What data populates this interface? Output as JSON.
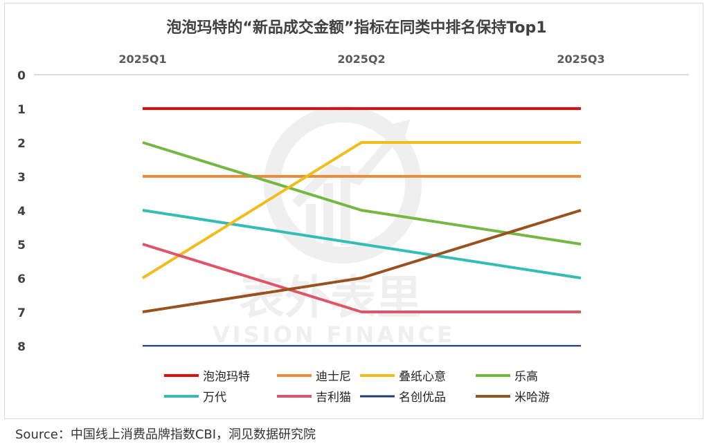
{
  "chart_data": {
    "type": "line",
    "title": "泡泡玛特的“新品成交金额”指标在同类中排名保持Top1",
    "x": [
      "2025Q1",
      "2025Q2",
      "2025Q3"
    ],
    "y_ticks": [
      "0",
      "1",
      "2",
      "3",
      "4",
      "5",
      "6",
      "7",
      "8"
    ],
    "ylim": [
      0,
      8
    ],
    "y_inverted": true,
    "grid": false,
    "legend_position": "bottom",
    "series": [
      {
        "name": "泡泡玛特",
        "values": [
          1,
          1,
          1
        ],
        "color": "#e30b0b"
      },
      {
        "name": "迪士尼",
        "values": [
          3,
          3,
          3
        ],
        "color": "#ee8a3c"
      },
      {
        "name": "叠纸心意",
        "values": [
          6,
          2,
          2
        ],
        "color": "#f2bd1c"
      },
      {
        "name": "乐高",
        "values": [
          2,
          4,
          5
        ],
        "color": "#74b843"
      },
      {
        "name": "万代",
        "values": [
          4,
          5,
          6
        ],
        "color": "#33bdb5"
      },
      {
        "name": "吉利猫",
        "values": [
          5,
          7,
          7
        ],
        "color": "#de5567"
      },
      {
        "name": "名创优品",
        "values": [
          8,
          8,
          8
        ],
        "color": "#1f3b7a"
      },
      {
        "name": "米哈游",
        "values": [
          7,
          6,
          4
        ],
        "color": "#99521e"
      }
    ]
  },
  "watermark": {
    "cn": "表外表里",
    "en": "VISION FINANCE"
  },
  "source": "Source：中国线上消费品牌指数CBI，洞见数据研究院"
}
